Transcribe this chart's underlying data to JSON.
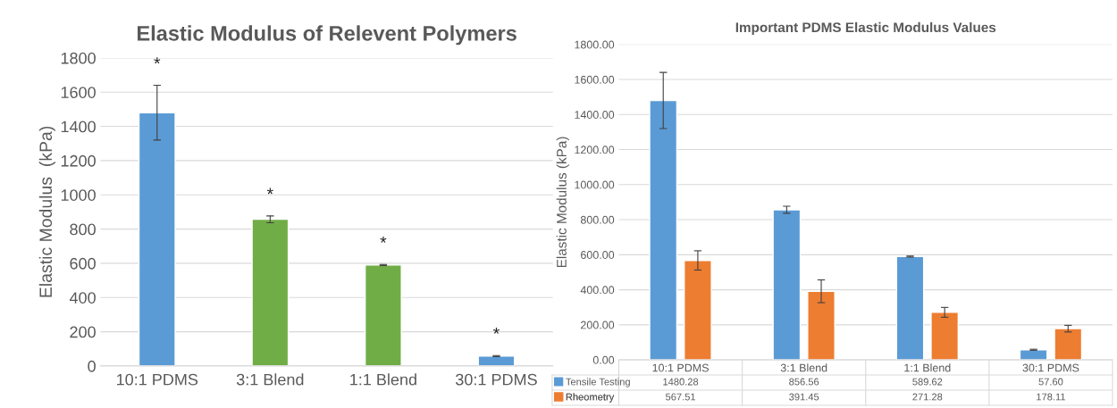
{
  "chart_data": [
    {
      "type": "bar",
      "title": "Elastic Modulus of Relevent Polymers",
      "ylabel": "Elastic Modulus  (kPa)",
      "categories": [
        "10:1 PDMS",
        "3:1 Blend",
        "1:1 Blend",
        "30:1 PDMS"
      ],
      "values": [
        1480,
        857,
        590,
        58
      ],
      "colors": [
        "#5b9bd5",
        "#70ad47",
        "#70ad47",
        "#5b9bd5"
      ],
      "errors": [
        160,
        20,
        3,
        3
      ],
      "annotations": [
        "*",
        "*",
        "*",
        "*"
      ],
      "ylim": [
        0,
        1800
      ],
      "yticks": [
        0,
        200,
        400,
        600,
        800,
        1000,
        1200,
        1400,
        1600,
        1800
      ],
      "grid": "y",
      "legend": false
    },
    {
      "type": "bar",
      "title": "Important PDMS Elastic Modulus Values",
      "ylabel": "Elastic Modulus (kPa)",
      "categories": [
        "10:1 PDMS",
        "3:1 Blend",
        "1:1 Blend",
        "30:1 PDMS"
      ],
      "series": [
        {
          "name": "Tensile Testing",
          "color": "#5b9bd5",
          "values": [
            1480.28,
            856.56,
            589.62,
            57.6
          ],
          "errors": [
            160,
            20,
            3,
            3
          ],
          "value_labels": [
            "1480.28",
            "856.56",
            "589.62",
            "57.60"
          ]
        },
        {
          "name": "Rheometry",
          "color": "#ed7d31",
          "values": [
            567.51,
            391.45,
            271.28,
            178.11
          ],
          "errors": [
            55,
            65,
            28,
            19
          ],
          "value_labels": [
            "567.51",
            "391.45",
            "271.28",
            "178.11"
          ]
        }
      ],
      "ylim": [
        0,
        1800
      ],
      "yticks": [
        {
          "value": 0,
          "label": "0.00"
        },
        {
          "value": 200,
          "label": "200.00"
        },
        {
          "value": 400,
          "label": "400.00"
        },
        {
          "value": 600,
          "label": "600.00"
        },
        {
          "value": 800,
          "label": "800.00"
        },
        {
          "value": 1000,
          "label": "1000.00"
        },
        {
          "value": 1200,
          "label": "1200.00"
        },
        {
          "value": 1400,
          "label": "1400.00"
        },
        {
          "value": 1600,
          "label": "1600.00"
        },
        {
          "value": 1800,
          "label": "1800.00"
        }
      ],
      "grid": "y",
      "legend": "bottom left"
    }
  ]
}
